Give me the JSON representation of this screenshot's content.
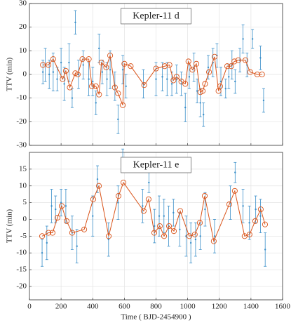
{
  "chart_data": [
    {
      "type": "errorbar",
      "title": "Kepler-11 d",
      "ylabel": "TTV (min)",
      "xlim": [
        0,
        1600
      ],
      "xticks": [
        0,
        200,
        400,
        600,
        800,
        1000,
        1200,
        1400,
        1600
      ],
      "ylim": [
        -30,
        30
      ],
      "yticks": [
        -30,
        -20,
        -10,
        0,
        10,
        20,
        30
      ],
      "grid": true,
      "observed": {
        "color": "#3a8fc9",
        "x": [
          85,
          100,
          125,
          150,
          175,
          200,
          220,
          250,
          270,
          290,
          310,
          340,
          375,
          400,
          420,
          440,
          460,
          490,
          510,
          540,
          560,
          590,
          610,
          720,
          800,
          840,
          870,
          900,
          930,
          960,
          985,
          1010,
          1040,
          1060,
          1080,
          1100,
          1130,
          1160,
          1185,
          1210,
          1240,
          1260,
          1280,
          1300,
          1330,
          1350,
          1375,
          1410,
          1460,
          1480
        ],
        "values": [
          1,
          4,
          0,
          1,
          -2,
          5,
          -4,
          5,
          -10,
          22,
          0,
          4,
          -2,
          -3,
          -12,
          11,
          1,
          -2,
          2,
          -5,
          -19,
          2,
          -5,
          -4,
          -2,
          -1,
          -2,
          -4,
          -2,
          -4,
          -14,
          -1,
          3,
          -7,
          -12,
          -17,
          3,
          5,
          8,
          -3,
          -6,
          -1,
          4,
          -3,
          6,
          15,
          4,
          15,
          7,
          -11
        ],
        "errors": [
          5,
          7,
          6,
          8,
          5,
          6,
          7,
          8,
          4,
          5,
          6,
          6,
          7,
          6,
          5,
          6,
          5,
          7,
          8,
          6,
          6,
          6,
          5,
          6,
          7,
          6,
          7,
          5,
          6,
          5,
          6,
          5,
          6,
          5,
          6,
          5,
          5,
          6,
          5,
          6,
          4,
          5,
          6,
          5,
          5,
          6,
          5,
          4,
          5,
          5
        ]
      },
      "model": {
        "color": "#d95319",
        "x": [
          85,
          120,
          150,
          210,
          230,
          255,
          290,
          305,
          335,
          375,
          395,
          420,
          440,
          455,
          485,
          510,
          540,
          560,
          590,
          600,
          640,
          725,
          800,
          855,
          885,
          910,
          930,
          960,
          985,
          1005,
          1030,
          1055,
          1080,
          1095,
          1110,
          1135,
          1170,
          1195,
          1205,
          1250,
          1275,
          1295,
          1320,
          1365,
          1395,
          1440,
          1470
        ],
        "values": [
          4,
          4,
          6.5,
          -2,
          1.5,
          -5.5,
          0.5,
          0,
          6.5,
          6.5,
          -5,
          -5,
          -8.5,
          5,
          3,
          8,
          -5.5,
          -8,
          -13,
          4.5,
          3.5,
          -4.5,
          2.5,
          3.5,
          4,
          -2.5,
          -1,
          -3,
          -4,
          5.5,
          2,
          4.5,
          -7.5,
          -7,
          -4,
          1,
          7.5,
          -7,
          -5,
          3.5,
          3.5,
          5.5,
          6,
          6,
          1,
          0,
          0
        ]
      }
    },
    {
      "type": "errorbar",
      "title": "Kepler-11 e",
      "ylabel": "TTV (min)",
      "xlabel": "Time ( BJD-2454900 )",
      "xlim": [
        0,
        1600
      ],
      "xticks": [
        0,
        200,
        400,
        600,
        800,
        1000,
        1200,
        1400,
        1600
      ],
      "ylim": [
        -24,
        20
      ],
      "yticks": [
        -20,
        -15,
        -10,
        -5,
        0,
        5,
        10,
        15
      ],
      "grid": true,
      "observed": {
        "color": "#3a8fc9",
        "x": [
          80,
          110,
          140,
          165,
          200,
          230,
          270,
          300,
          400,
          430,
          500,
          560,
          590,
          715,
          755,
          790,
          820,
          850,
          880,
          910,
          950,
          990,
          1020,
          1050,
          1080,
          1110,
          1170,
          1270,
          1300,
          1350,
          1390,
          1430,
          1460,
          1490
        ],
        "values": [
          -10,
          -7,
          4,
          3,
          5,
          4,
          -4,
          -8,
          1,
          12,
          -6,
          5,
          18,
          4,
          11,
          -2,
          1,
          1,
          -2,
          2,
          -3,
          -5,
          -7,
          -6,
          -5,
          3,
          -5,
          5,
          14,
          4,
          -1,
          3,
          1,
          -9
        ],
        "errors": [
          4,
          5,
          5,
          4,
          4,
          5,
          5,
          5,
          6,
          4,
          5,
          5,
          3,
          5,
          3,
          5,
          6,
          5,
          6,
          4,
          5,
          6,
          6,
          5,
          4,
          5,
          5,
          5,
          3,
          5,
          5,
          4,
          5,
          5
        ]
      },
      "model": {
        "color": "#d95319",
        "x": [
          80,
          120,
          146,
          177,
          204,
          235,
          270,
          346,
          403,
          439,
          501,
          563,
          594,
          722,
          753,
          789,
          824,
          851,
          882,
          913,
          953,
          1010,
          1045,
          1077,
          1108,
          1165,
          1263,
          1298,
          1360,
          1391,
          1427,
          1462,
          1489
        ],
        "values": [
          -5,
          -4,
          -4,
          0.5,
          4,
          -0.5,
          -4,
          -3,
          6,
          10,
          -5,
          7,
          11,
          2.5,
          6,
          -4,
          -2,
          -5,
          -2,
          -3.5,
          2.5,
          -5,
          -4.5,
          -1,
          7,
          -6.5,
          4.5,
          8.5,
          -5,
          -4.5,
          -0.5,
          3,
          -1.5
        ]
      }
    }
  ]
}
